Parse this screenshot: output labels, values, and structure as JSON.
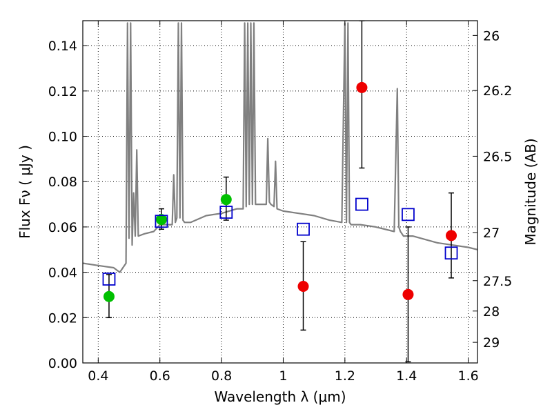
{
  "chart_data": {
    "type": "scatter",
    "title": "",
    "xlabel": "Wavelength  λ (μm)",
    "ylabel": "Flux  Fν  ( μJy )",
    "y2label": "Magnitude (AB)",
    "xlim": [
      0.35,
      1.63
    ],
    "ylim": [
      0.0,
      0.151
    ],
    "grid": true,
    "xticks": [
      0.4,
      0.6,
      0.8,
      1.0,
      1.2,
      1.4,
      1.6
    ],
    "xtick_labels": [
      "0.4",
      "0.6",
      "0.8",
      "1",
      "1.2",
      "1.4",
      "1.6"
    ],
    "yticks": [
      0.0,
      0.02,
      0.04,
      0.06,
      0.08,
      0.1,
      0.12,
      0.14
    ],
    "ytick_labels": [
      "0.00",
      "0.02",
      "0.04",
      "0.06",
      "0.08",
      "0.10",
      "0.12",
      "0.14"
    ],
    "y2_ticks": [
      {
        "label": "26",
        "flux": 0.1445
      },
      {
        "label": "26.2",
        "flux": 0.1202
      },
      {
        "label": "26.5",
        "flux": 0.0912
      },
      {
        "label": "27",
        "flux": 0.0575
      },
      {
        "label": "27.5",
        "flux": 0.0363
      },
      {
        "label": "28",
        "flux": 0.0229
      },
      {
        "label": "29",
        "flux": 0.0091
      }
    ],
    "colors": {
      "spectrum": "#808080",
      "green": "#00c000",
      "red": "#ee0000",
      "model": "#0000cc",
      "errorbar": "#000000",
      "grid": "#000000"
    },
    "series": [
      {
        "kind": "line",
        "color": "#808080",
        "x": [
          0.35,
          0.4,
          0.45,
          0.47,
          0.49,
          0.495,
          0.5,
          0.505,
          0.51,
          0.515,
          0.52,
          0.525,
          0.53,
          0.55,
          0.58,
          0.6,
          0.62,
          0.64,
          0.645,
          0.65,
          0.655,
          0.66,
          0.665,
          0.67,
          0.675,
          0.68,
          0.7,
          0.75,
          0.8,
          0.85,
          0.87,
          0.875,
          0.88,
          0.885,
          0.89,
          0.895,
          0.9,
          0.905,
          0.91,
          0.93,
          0.945,
          0.95,
          0.955,
          0.96,
          0.97,
          0.975,
          0.98,
          1.0,
          1.05,
          1.1,
          1.15,
          1.19,
          1.2,
          1.205,
          1.21,
          1.215,
          1.22,
          1.25,
          1.3,
          1.36,
          1.37,
          1.375,
          1.38,
          1.39,
          1.42,
          1.5,
          1.6,
          1.63
        ],
        "y": [
          0.044,
          0.043,
          0.042,
          0.04,
          0.044,
          0.15,
          0.055,
          0.15,
          0.052,
          0.075,
          0.056,
          0.094,
          0.056,
          0.057,
          0.058,
          0.061,
          0.061,
          0.061,
          0.083,
          0.062,
          0.064,
          0.15,
          0.064,
          0.15,
          0.063,
          0.062,
          0.062,
          0.065,
          0.066,
          0.068,
          0.068,
          0.15,
          0.069,
          0.15,
          0.07,
          0.15,
          0.07,
          0.15,
          0.07,
          0.07,
          0.07,
          0.099,
          0.071,
          0.07,
          0.069,
          0.089,
          0.068,
          0.067,
          0.066,
          0.065,
          0.063,
          0.062,
          0.15,
          0.062,
          0.15,
          0.062,
          0.061,
          0.061,
          0.06,
          0.058,
          0.121,
          0.06,
          0.058,
          0.056,
          0.056,
          0.053,
          0.051,
          0.05
        ]
      },
      {
        "kind": "points",
        "color": "#00c000",
        "x": [
          0.435,
          0.605,
          0.815
        ],
        "y": [
          0.0293,
          0.0633,
          0.0721
        ],
        "err_low": [
          0.02,
          0.059,
          0.063
        ],
        "err_high": [
          0.039,
          0.068,
          0.082
        ]
      },
      {
        "kind": "points",
        "color": "#ee0000",
        "x": [
          1.065,
          1.255,
          1.405,
          1.545
        ],
        "y": [
          0.0338,
          0.1215,
          0.0302,
          0.0562
        ],
        "err_low": [
          0.0145,
          0.086,
          0.0005,
          0.0375
        ],
        "err_high": [
          0.0535,
          0.151,
          0.06,
          0.075
        ]
      },
      {
        "kind": "squares",
        "color": "#0000cc",
        "x": [
          0.435,
          0.605,
          0.815,
          1.065,
          1.255,
          1.405,
          1.545
        ],
        "y": [
          0.037,
          0.0625,
          0.0665,
          0.059,
          0.07,
          0.0655,
          0.0485
        ]
      }
    ]
  }
}
